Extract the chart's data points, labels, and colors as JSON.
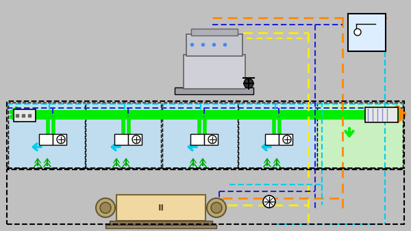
{
  "bg": "#c0c0c0",
  "tank_blue": "#c0ddf0",
  "green_room": "#c8f0c0",
  "green_pipe": "#00ee00",
  "dark_blue": "#2020cc",
  "cyan_pipe": "#00ccee",
  "orange_pipe": "#ff8800",
  "yellow_pipe": "#ffee00",
  "chiller_fill": "#f0d8a0",
  "tower_gray": "#b8b8b8",
  "tower_top": "#d0d0d0",
  "white": "#ffffff",
  "black": "#000000",
  "dkblue_border": "#000080"
}
